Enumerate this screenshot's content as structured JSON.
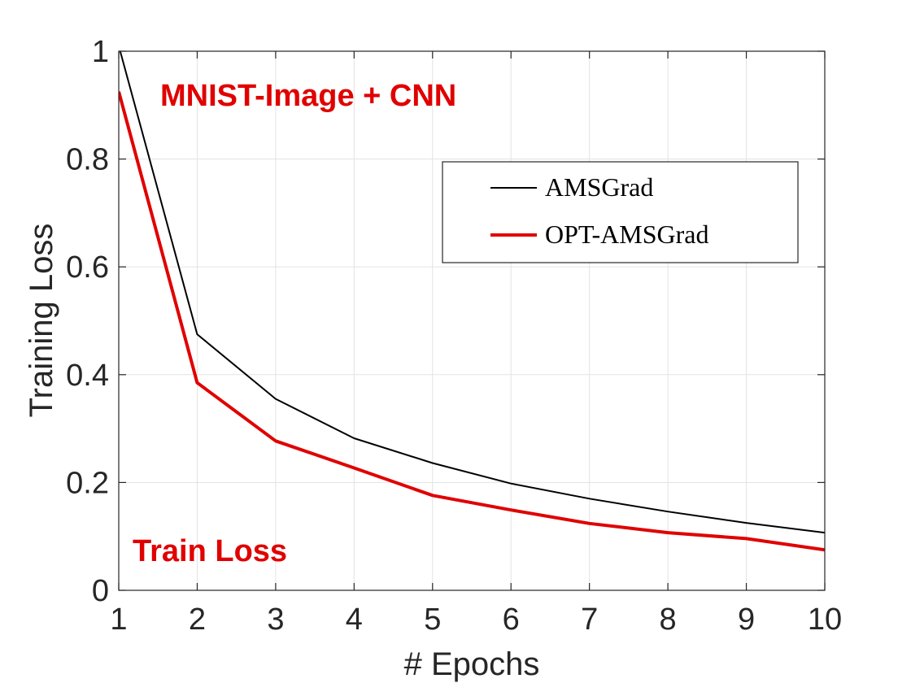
{
  "chart_data": {
    "type": "line",
    "title": "",
    "xlabel": "# Epochs",
    "ylabel": "Training Loss",
    "xlim": [
      1,
      10
    ],
    "ylim": [
      0,
      1
    ],
    "xticks": [
      1,
      2,
      3,
      4,
      5,
      6,
      7,
      8,
      9,
      10
    ],
    "yticks": [
      0,
      0.2,
      0.4,
      0.6,
      0.8,
      1
    ],
    "ytick_labels": [
      "0",
      "0.2",
      "0.4",
      "0.6",
      "0.8",
      "1"
    ],
    "grid": true,
    "legend_position": "top-right",
    "annotations": [
      "MNIST-Image + CNN",
      "Train Loss"
    ],
    "x": [
      1,
      2,
      3,
      4,
      5,
      6,
      7,
      8,
      9,
      10
    ],
    "series": [
      {
        "name": "AMSGrad",
        "color": "#000000",
        "values": [
          1.01,
          0.475,
          0.355,
          0.282,
          0.236,
          0.198,
          0.17,
          0.146,
          0.125,
          0.107
        ]
      },
      {
        "name": "OPT-AMSGrad",
        "color": "#e00000",
        "values": [
          0.925,
          0.385,
          0.277,
          0.227,
          0.176,
          0.149,
          0.124,
          0.107,
          0.096,
          0.075
        ]
      }
    ]
  }
}
